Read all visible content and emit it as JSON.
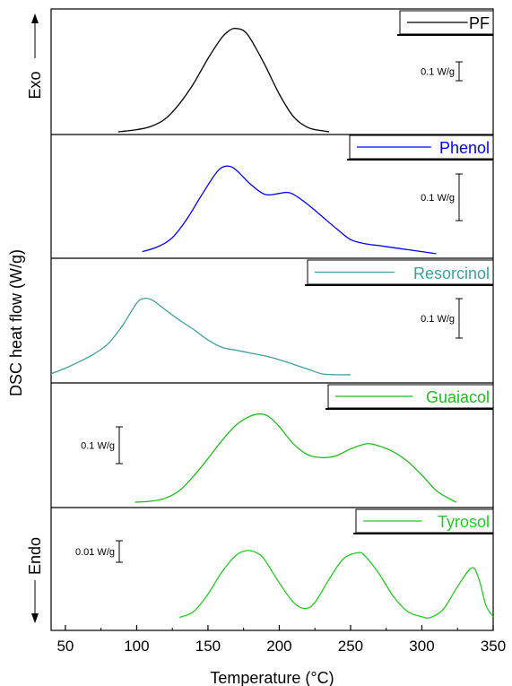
{
  "chart_data": {
    "type": "line",
    "xlabel": "Temperature (°C)",
    "ylabel": "DSC heat flow (W/g)",
    "xlim": [
      40,
      350
    ],
    "x_ticks": [
      50,
      100,
      150,
      200,
      250,
      300,
      350
    ],
    "exo_label": "Exo",
    "endo_label": "Endo",
    "grid": false,
    "series": [
      {
        "name": "PF",
        "color": "#000000",
        "scale_label": "0.1 W/g",
        "scale_value": 0.1,
        "y_range": [
          0,
          1.0
        ],
        "x": [
          87,
          100,
          110,
          120,
          130,
          140,
          150,
          160,
          166,
          170,
          175,
          180,
          190,
          200,
          210,
          220,
          230,
          235
        ],
        "y": [
          0.0,
          0.02,
          0.05,
          0.12,
          0.26,
          0.45,
          0.68,
          0.88,
          0.95,
          0.96,
          0.94,
          0.86,
          0.62,
          0.35,
          0.14,
          0.04,
          0.01,
          0.0
        ]
      },
      {
        "name": "Phenol",
        "color": "#0000ff",
        "scale_label": "0.1 W/g",
        "scale_value": 0.1,
        "y_range": [
          0,
          1.0
        ],
        "x": [
          104,
          115,
          125,
          135,
          145,
          155,
          160,
          165,
          170,
          180,
          190,
          200,
          205,
          210,
          220,
          230,
          240,
          250,
          260,
          270,
          280,
          290,
          300,
          310
        ],
        "y": [
          0.03,
          0.08,
          0.17,
          0.35,
          0.58,
          0.8,
          0.87,
          0.88,
          0.84,
          0.7,
          0.6,
          0.61,
          0.62,
          0.6,
          0.5,
          0.38,
          0.26,
          0.15,
          0.11,
          0.09,
          0.07,
          0.05,
          0.03,
          0.01
        ]
      },
      {
        "name": "Resorcinol",
        "color": "#3f9f9f",
        "scale_label": "0.1 W/g",
        "scale_value": 0.1,
        "y_range": [
          0,
          1.0
        ],
        "x": [
          40,
          50,
          60,
          70,
          80,
          90,
          100,
          105,
          110,
          115,
          120,
          130,
          140,
          150,
          160,
          170,
          180,
          190,
          200,
          210,
          220,
          230,
          240,
          250
        ],
        "y": [
          0.03,
          0.09,
          0.16,
          0.24,
          0.35,
          0.54,
          0.78,
          0.83,
          0.82,
          0.77,
          0.71,
          0.6,
          0.5,
          0.39,
          0.31,
          0.28,
          0.25,
          0.22,
          0.18,
          0.13,
          0.08,
          0.03,
          0.02,
          0.02
        ]
      },
      {
        "name": "Guaiacol",
        "color": "#22bb22",
        "scale_label": "0.1 W/g",
        "scale_value": 0.1,
        "y_range": [
          0,
          1.0
        ],
        "x": [
          99,
          110,
          120,
          130,
          140,
          150,
          160,
          170,
          180,
          187,
          193,
          200,
          210,
          220,
          230,
          240,
          250,
          260,
          265,
          270,
          280,
          290,
          300,
          310,
          320,
          324
        ],
        "y": [
          0.0,
          0.01,
          0.04,
          0.12,
          0.27,
          0.45,
          0.64,
          0.8,
          0.89,
          0.91,
          0.88,
          0.78,
          0.6,
          0.49,
          0.46,
          0.48,
          0.55,
          0.6,
          0.6,
          0.58,
          0.52,
          0.42,
          0.28,
          0.12,
          0.03,
          0.0
        ]
      },
      {
        "name": "Tyrosol",
        "color": "#22cc22",
        "scale_label": "0.01 W/g",
        "scale_value": 0.01,
        "y_range": [
          0,
          1.0
        ],
        "x": [
          130,
          140,
          150,
          160,
          170,
          178,
          185,
          190,
          200,
          210,
          218,
          225,
          235,
          245,
          255,
          260,
          270,
          280,
          290,
          300,
          306,
          315,
          325,
          335,
          340,
          345,
          350
        ],
        "y": [
          0.04,
          0.12,
          0.35,
          0.65,
          0.87,
          0.93,
          0.89,
          0.8,
          0.5,
          0.24,
          0.16,
          0.24,
          0.55,
          0.82,
          0.9,
          0.86,
          0.62,
          0.32,
          0.12,
          0.05,
          0.04,
          0.15,
          0.45,
          0.7,
          0.55,
          0.2,
          0.05
        ]
      }
    ]
  }
}
